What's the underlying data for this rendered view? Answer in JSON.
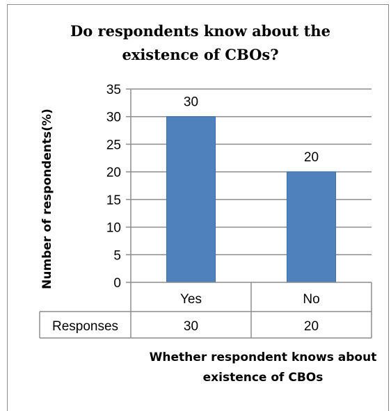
{
  "chart_data": {
    "type": "bar",
    "title_line1": "Do respondents know about the",
    "title_line2": "existence of CBOs?",
    "categories": [
      "Yes",
      "No"
    ],
    "series": [
      {
        "name": "Responses",
        "values": [
          30,
          20
        ]
      }
    ],
    "data_labels": [
      "30",
      "20"
    ],
    "ylabel": "Number of respondents(%)",
    "xlabel_line1": "Whether respondent knows about",
    "xlabel_line2": "existence of CBOs",
    "ylim": [
      0,
      35
    ],
    "yticks": [
      0,
      5,
      10,
      15,
      20,
      25,
      30,
      35
    ],
    "grid": true,
    "data_table": true,
    "colors": {
      "bar": "#4f81bd",
      "bar_edge": "#3f6fa8",
      "grid": "#8c8c8c",
      "text": "#000000"
    }
  }
}
